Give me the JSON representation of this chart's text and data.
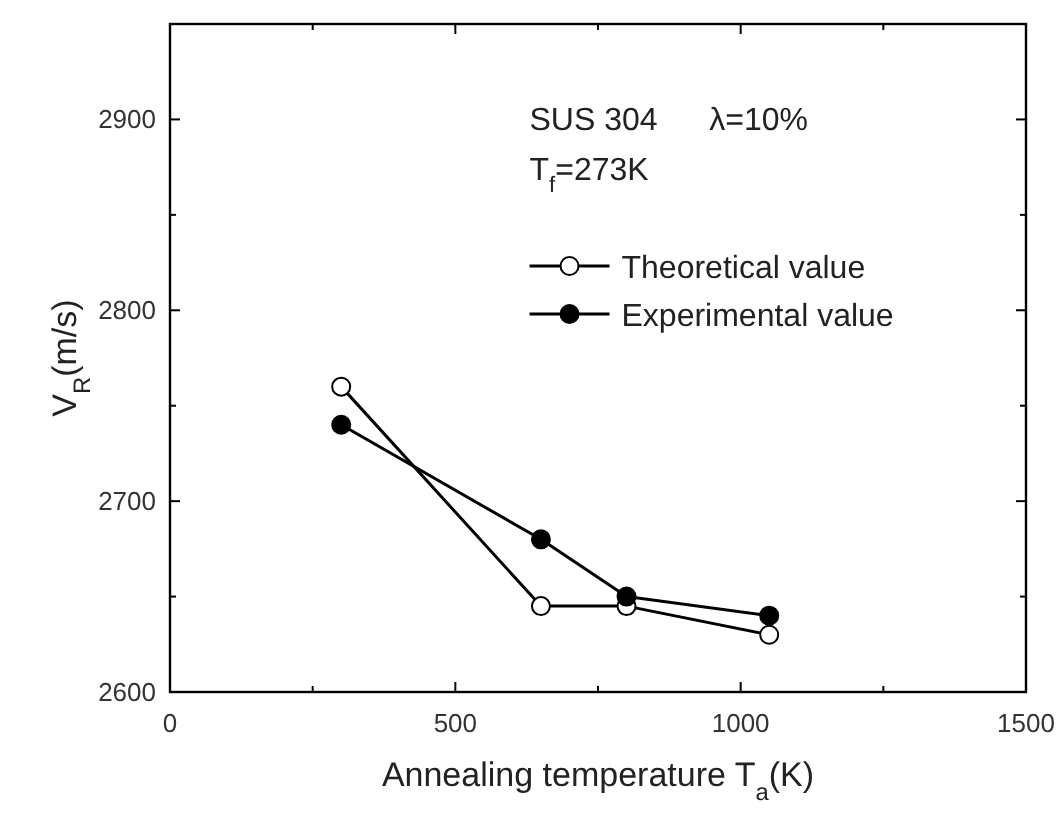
{
  "chart_data": {
    "type": "line",
    "xlabel": "Annealing temperature   T$_{a}$(K)",
    "ylabel": "V$_{R}$(m/s)",
    "annotations": [
      "SUS 304",
      "λ=10%",
      "T$_{f}$=273K"
    ],
    "x": [
      300,
      650,
      800,
      1050
    ],
    "series": [
      {
        "name": "Theoretical value",
        "color": "#000000",
        "values": [
          2760,
          2645,
          2645,
          2630
        ],
        "marker": "circle"
      },
      {
        "name": "Experimental value",
        "color": "#000000",
        "values": [
          2740,
          2680,
          2650,
          2640
        ],
        "marker": "circle"
      }
    ],
    "xlim": [
      0,
      1500
    ],
    "xticks": [
      0,
      {
        "value": 250,
        "label": null
      },
      500,
      {
        "value": 750,
        "label": null
      },
      1000,
      {
        "value": 1250,
        "label": null
      },
      1500
    ],
    "ylim": [
      2600,
      2950
    ],
    "yticks": [
      2600,
      {
        "value": 2650,
        "label": null
      },
      2700,
      {
        "value": 2750,
        "label": null
      },
      2800,
      {
        "value": 2850,
        "label": null
      },
      2900
    ],
    "legend": "top right",
    "grid": false,
    "line_style": "solid"
  }
}
